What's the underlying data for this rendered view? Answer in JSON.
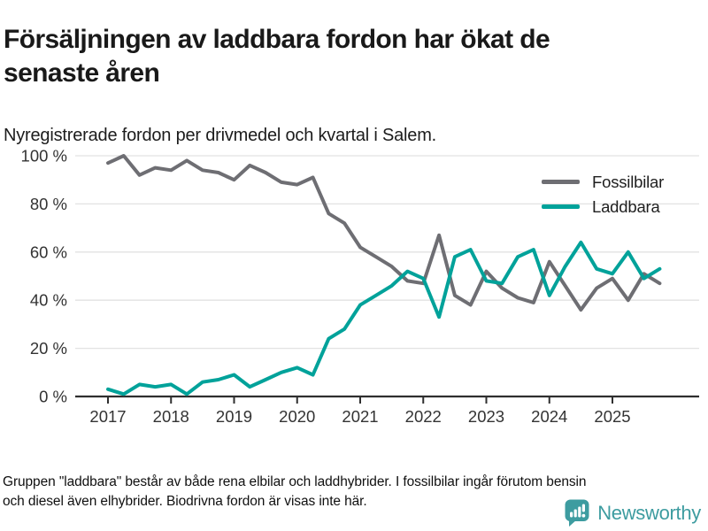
{
  "header": {
    "title": "Försäljningen av laddbara fordon har ökat de senaste åren",
    "title_lines": [
      "Försäljningen av laddbara fordon har ökat de",
      "senaste åren"
    ],
    "subtitle": "Nyregistrerade fordon per drivmedel och kvartal i Salem."
  },
  "chart": {
    "legend": [
      {
        "label": "Fossilbilar",
        "color": "#6e6e73"
      },
      {
        "label": "Laddbara",
        "color": "#00a29a"
      }
    ],
    "y_ticks": [
      "0 %",
      "20 %",
      "40 %",
      "60 %",
      "80 %",
      "100 %"
    ],
    "x_ticks": [
      "2017",
      "2018",
      "2019",
      "2020",
      "2021",
      "2022",
      "2023",
      "2024",
      "2025"
    ],
    "grid_color": "#e2e2e2",
    "axis_color": "#2f2f2f",
    "tick_label_color": "#333333"
  },
  "chart_data": {
    "type": "line",
    "x": [
      "2017Q1",
      "2017Q2",
      "2017Q3",
      "2017Q4",
      "2018Q1",
      "2018Q2",
      "2018Q3",
      "2018Q4",
      "2019Q1",
      "2019Q2",
      "2019Q3",
      "2019Q4",
      "2020Q1",
      "2020Q2",
      "2020Q3",
      "2020Q4",
      "2021Q1",
      "2021Q2",
      "2021Q3",
      "2021Q4",
      "2022Q1",
      "2022Q2",
      "2022Q3",
      "2022Q4",
      "2023Q1",
      "2023Q2",
      "2023Q3",
      "2023Q4",
      "2024Q1",
      "2024Q2",
      "2024Q3",
      "2024Q4",
      "2025Q1",
      "2025Q2",
      "2025Q3",
      "2025Q4"
    ],
    "series": [
      {
        "name": "Fossilbilar",
        "color": "#6e6e73",
        "values": [
          97,
          100,
          92,
          95,
          94,
          98,
          94,
          93,
          90,
          96,
          93,
          89,
          88,
          91,
          76,
          72,
          62,
          58,
          54,
          48,
          47,
          67,
          42,
          38,
          52,
          45,
          41,
          39,
          56,
          46,
          36,
          45,
          49,
          40,
          51,
          47
        ]
      },
      {
        "name": "Laddbara",
        "color": "#00a29a",
        "values": [
          3,
          1,
          5,
          4,
          5,
          1,
          6,
          7,
          9,
          4,
          7,
          10,
          12,
          9,
          24,
          28,
          38,
          42,
          46,
          52,
          49,
          33,
          58,
          61,
          48,
          47,
          58,
          61,
          42,
          54,
          64,
          53,
          51,
          60,
          49,
          53
        ]
      }
    ],
    "title": "Försäljningen av laddbara fordon har ökat de senaste åren",
    "subtitle": "Nyregistrerade fordon per drivmedel och kvartal i Salem.",
    "xlabel": "",
    "ylabel": "",
    "ylim": [
      0,
      100
    ],
    "y_tick_step": 20,
    "y_tick_suffix": " %",
    "grid": true,
    "legend_position": "top-right"
  },
  "footer": {
    "note": "Gruppen \"laddbara\" består av både rena elbilar och laddhybrider. I fossilbilar ingår förutom bensin och diesel även elhybrider. Biodrivna fordon är visas inte här.",
    "lines": [
      "Gruppen \"laddbara\" består av både rena elbilar och laddhybrider. I fossilbilar ingår förutom bensin",
      "och diesel även elhybrider. Biodrivna fordon är visas inte här."
    ],
    "brand": "Newsworthy"
  }
}
